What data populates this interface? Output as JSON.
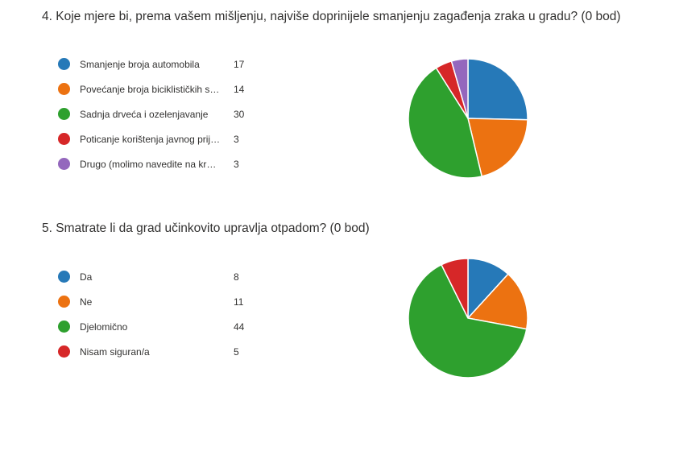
{
  "chart_data": [
    {
      "type": "pie",
      "title": "4.  Koje mjere bi, prema vašem mišljenju, najviše doprinijele smanjenju zagađenja zraka u gradu? (0 bod)",
      "categories": [
        "Smanjenje broja automobila",
        "Povećanje broja biciklističkih sta...",
        "Sadnja drveća i ozelenjavanje",
        "Poticanje korištenja javnog prije...",
        "Drugo (molimo navedite na kraj..."
      ],
      "values": [
        17,
        14,
        30,
        3,
        3
      ],
      "colors": [
        "#2679b8",
        "#ec7211",
        "#2ea02e",
        "#d62728",
        "#9467bd"
      ],
      "legend": "left"
    },
    {
      "type": "pie",
      "title": "5.  Smatrate li da grad učinkovito upravlja otpadom? (0 bod)",
      "categories": [
        "Da",
        "Ne",
        "Djelomično",
        "Nisam siguran/a"
      ],
      "values": [
        8,
        11,
        44,
        5
      ],
      "colors": [
        "#2679b8",
        "#ec7211",
        "#2ea02e",
        "#d62728"
      ],
      "legend": "left"
    }
  ]
}
